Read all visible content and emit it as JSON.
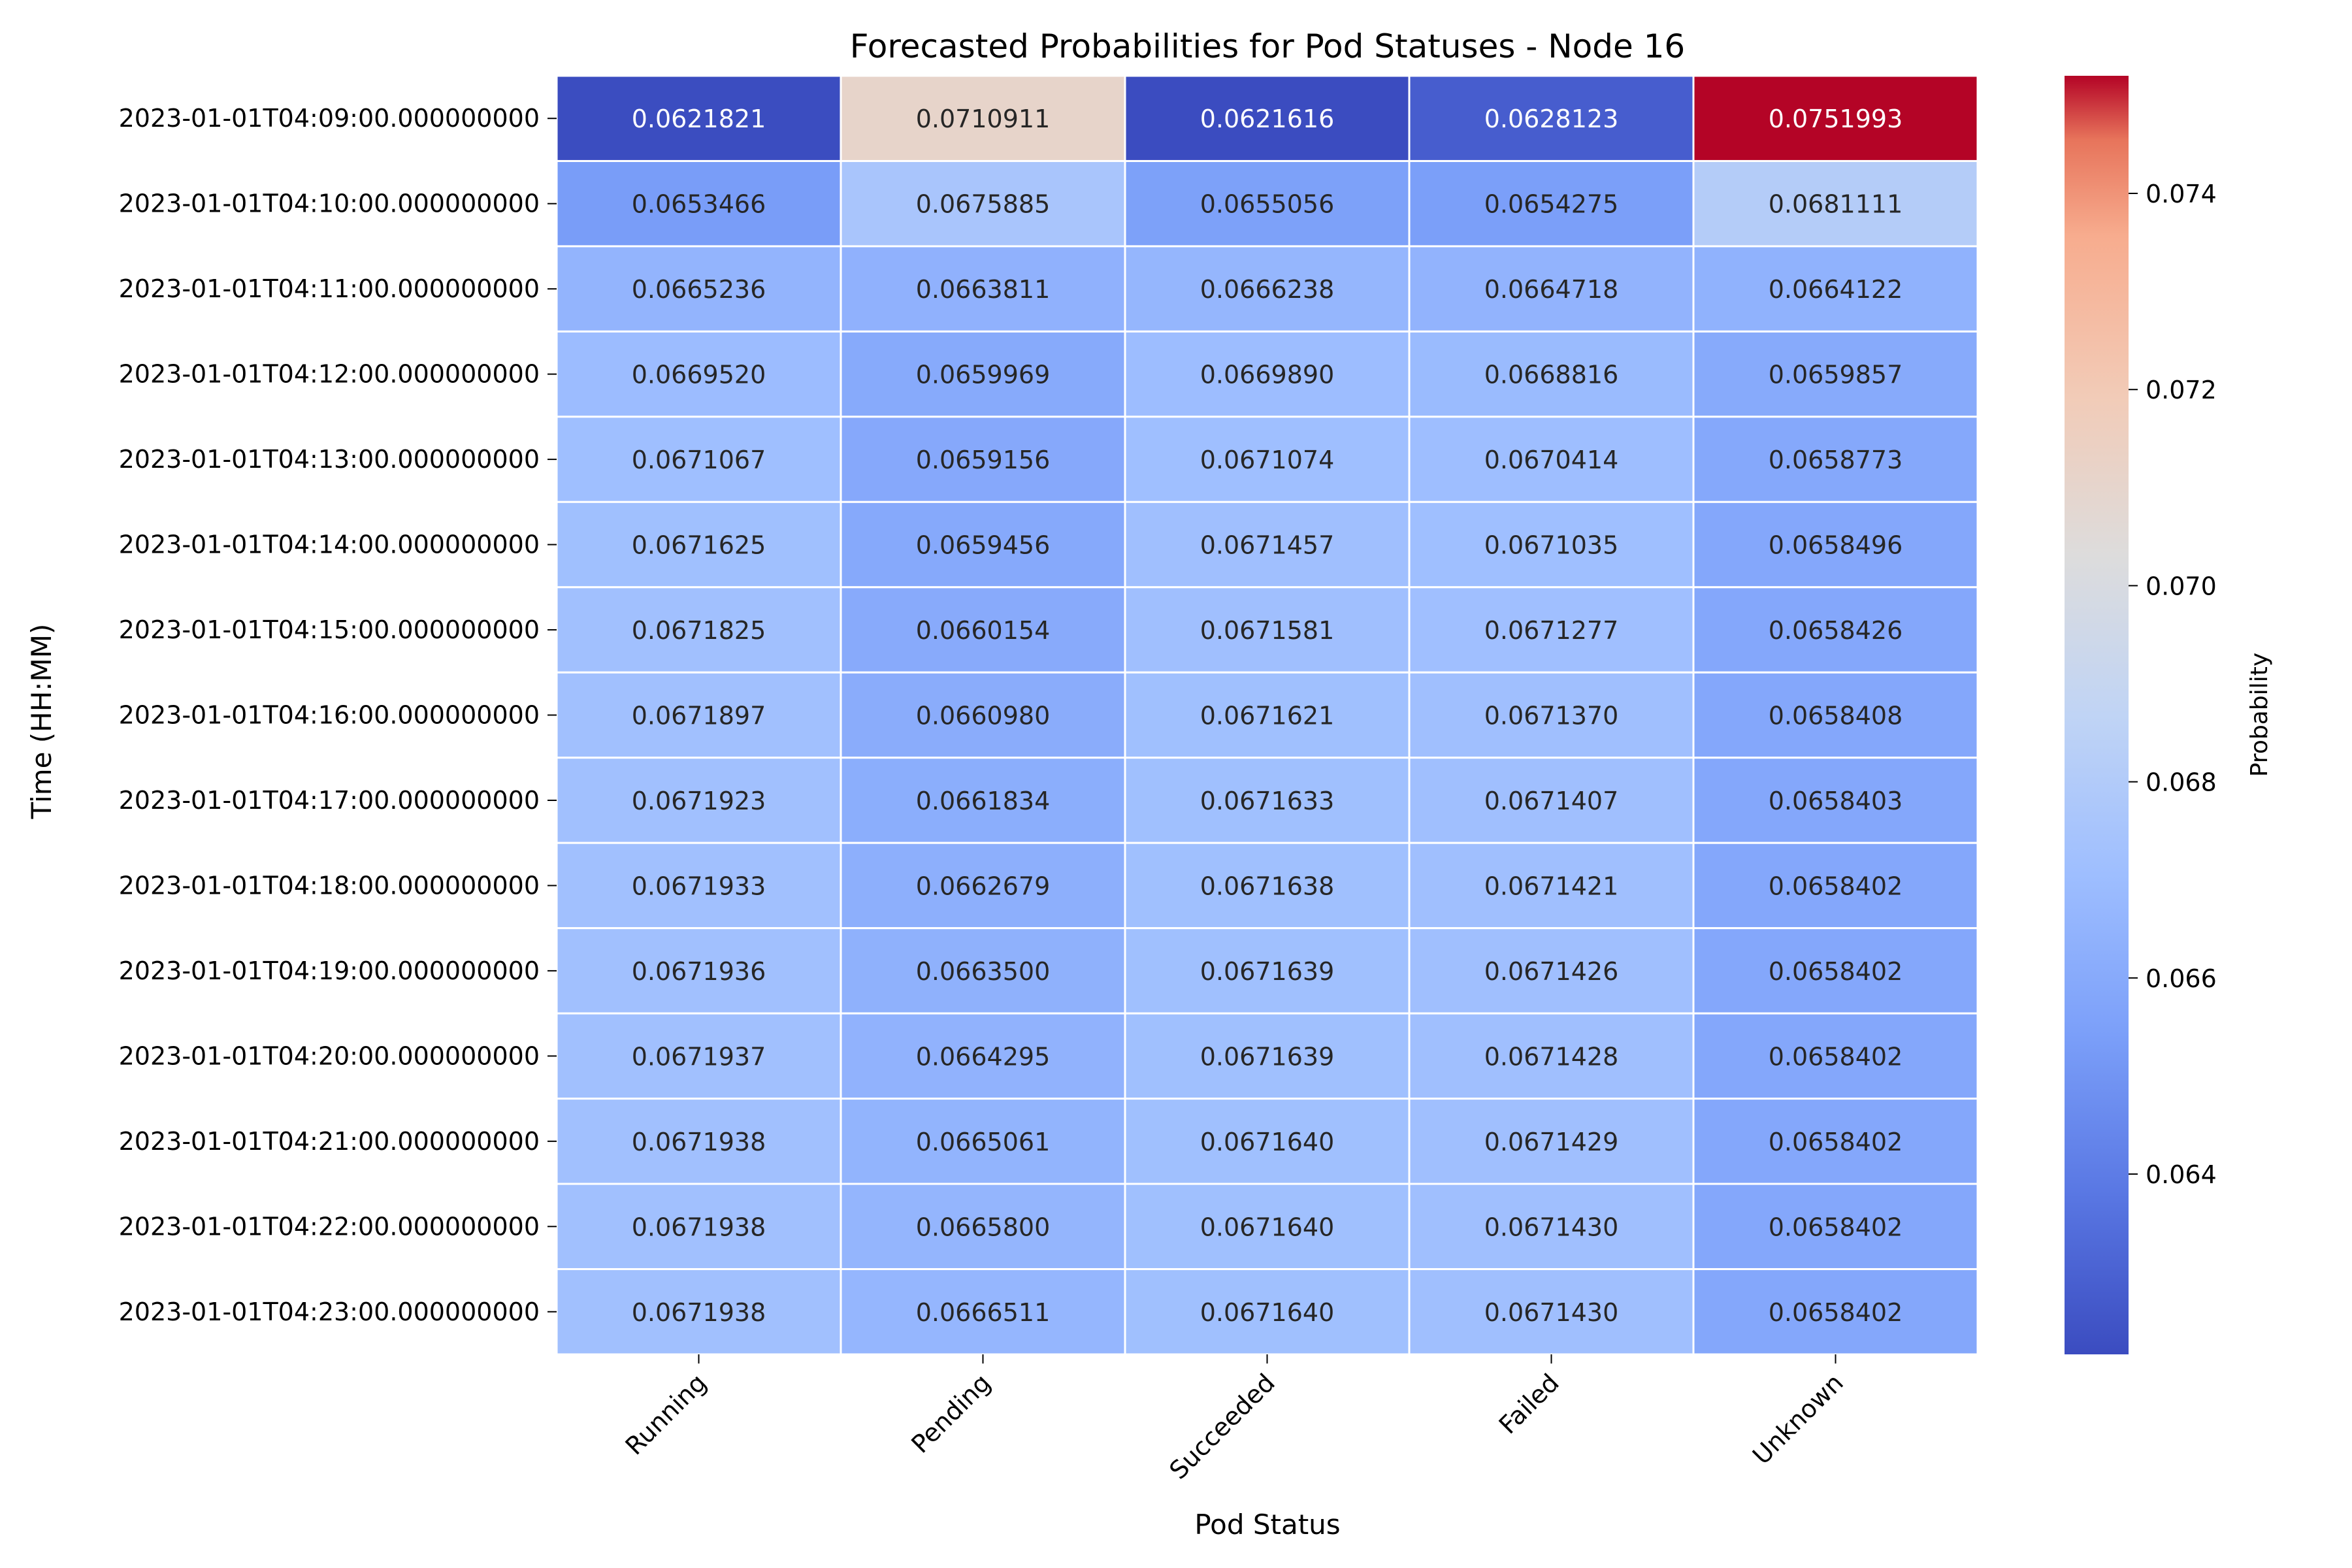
{
  "chart_data": {
    "type": "heatmap",
    "title": "Forecasted Probabilities for Pod Statuses - Node 16",
    "xlabel": "Pod Status",
    "ylabel": "Time (HH:MM)",
    "colorbar_label": "Probability",
    "colormap": "coolwarm",
    "vmin": 0.0621616,
    "vmax": 0.0751993,
    "colorbar_ticks": [
      "0.064",
      "0.066",
      "0.068",
      "0.070",
      "0.072",
      "0.074"
    ],
    "x_categories": [
      "Running",
      "Pending",
      "Succeeded",
      "Failed",
      "Unknown"
    ],
    "y_categories": [
      "2023-01-01T04:09:00.000000000",
      "2023-01-01T04:10:00.000000000",
      "2023-01-01T04:11:00.000000000",
      "2023-01-01T04:12:00.000000000",
      "2023-01-01T04:13:00.000000000",
      "2023-01-01T04:14:00.000000000",
      "2023-01-01T04:15:00.000000000",
      "2023-01-01T04:16:00.000000000",
      "2023-01-01T04:17:00.000000000",
      "2023-01-01T04:18:00.000000000",
      "2023-01-01T04:19:00.000000000",
      "2023-01-01T04:20:00.000000000",
      "2023-01-01T04:21:00.000000000",
      "2023-01-01T04:22:00.000000000",
      "2023-01-01T04:23:00.000000000"
    ],
    "values": [
      [
        "0.0621821",
        "0.0710911",
        "0.0621616",
        "0.0628123",
        "0.0751993"
      ],
      [
        "0.0653466",
        "0.0675885",
        "0.0655056",
        "0.0654275",
        "0.0681111"
      ],
      [
        "0.0665236",
        "0.0663811",
        "0.0666238",
        "0.0664718",
        "0.0664122"
      ],
      [
        "0.0669520",
        "0.0659969",
        "0.0669890",
        "0.0668816",
        "0.0659857"
      ],
      [
        "0.0671067",
        "0.0659156",
        "0.0671074",
        "0.0670414",
        "0.0658773"
      ],
      [
        "0.0671625",
        "0.0659456",
        "0.0671457",
        "0.0671035",
        "0.0658496"
      ],
      [
        "0.0671825",
        "0.0660154",
        "0.0671581",
        "0.0671277",
        "0.0658426"
      ],
      [
        "0.0671897",
        "0.0660980",
        "0.0671621",
        "0.0671370",
        "0.0658408"
      ],
      [
        "0.0671923",
        "0.0661834",
        "0.0671633",
        "0.0671407",
        "0.0658403"
      ],
      [
        "0.0671933",
        "0.0662679",
        "0.0671638",
        "0.0671421",
        "0.0658402"
      ],
      [
        "0.0671936",
        "0.0663500",
        "0.0671639",
        "0.0671426",
        "0.0658402"
      ],
      [
        "0.0671937",
        "0.0664295",
        "0.0671639",
        "0.0671428",
        "0.0658402"
      ],
      [
        "0.0671938",
        "0.0665061",
        "0.0671640",
        "0.0671429",
        "0.0658402"
      ],
      [
        "0.0671938",
        "0.0665800",
        "0.0671640",
        "0.0671430",
        "0.0658402"
      ],
      [
        "0.0671938",
        "0.0666511",
        "0.0671640",
        "0.0671430",
        "0.0658402"
      ]
    ]
  }
}
